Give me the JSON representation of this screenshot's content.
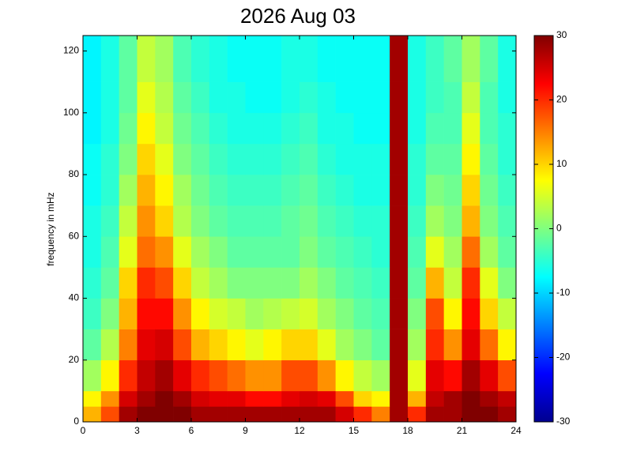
{
  "chart_data": {
    "type": "heatmap",
    "title": "2026 Aug 03",
    "y_label": "frequency in mHz",
    "x": [
      0,
      1,
      2,
      3,
      4,
      5,
      6,
      7,
      8,
      9,
      10,
      11,
      12,
      13,
      14,
      15,
      16,
      17,
      18,
      19,
      20,
      21,
      22,
      23,
      24
    ],
    "y": [
      0,
      5,
      10,
      20,
      30,
      40,
      50,
      60,
      70,
      80,
      90,
      100,
      110,
      125
    ],
    "values": [
      [
        12,
        18,
        28,
        30,
        30,
        30,
        28,
        28,
        28,
        28,
        28,
        28,
        28,
        28,
        25,
        20,
        15,
        28,
        20,
        28,
        28,
        30,
        30,
        28
      ],
      [
        8,
        14,
        25,
        28,
        30,
        28,
        25,
        24,
        24,
        22,
        22,
        24,
        25,
        24,
        18,
        10,
        8,
        28,
        12,
        26,
        28,
        30,
        28,
        26
      ],
      [
        2,
        8,
        20,
        26,
        28,
        24,
        20,
        18,
        16,
        14,
        14,
        18,
        18,
        14,
        8,
        4,
        2,
        28,
        6,
        24,
        22,
        28,
        24,
        18
      ],
      [
        -2,
        3,
        15,
        24,
        25,
        18,
        12,
        10,
        8,
        6,
        8,
        10,
        10,
        6,
        2,
        0,
        -2,
        28,
        2,
        20,
        14,
        24,
        16,
        8
      ],
      [
        -4,
        0,
        12,
        22,
        22,
        14,
        8,
        5,
        4,
        2,
        3,
        4,
        5,
        2,
        0,
        -2,
        -3,
        28,
        0,
        18,
        8,
        22,
        10,
        4
      ],
      [
        -5,
        -2,
        10,
        20,
        18,
        10,
        4,
        2,
        0,
        0,
        0,
        0,
        2,
        0,
        -2,
        -3,
        -4,
        28,
        -2,
        12,
        4,
        20,
        6,
        0
      ],
      [
        -6,
        -3,
        6,
        16,
        14,
        6,
        2,
        0,
        -2,
        -2,
        -2,
        -2,
        0,
        -2,
        -3,
        -4,
        -5,
        28,
        -3,
        6,
        2,
        16,
        2,
        -2
      ],
      [
        -6,
        -4,
        4,
        14,
        10,
        3,
        0,
        -2,
        -3,
        -3,
        -3,
        -2,
        -1,
        -3,
        -4,
        -5,
        -5,
        28,
        -4,
        2,
        0,
        12,
        0,
        -3
      ],
      [
        -7,
        -5,
        2,
        12,
        8,
        2,
        -1,
        -3,
        -4,
        -4,
        -4,
        -3,
        -2,
        -4,
        -5,
        -6,
        -6,
        28,
        -5,
        0,
        -1,
        10,
        -1,
        -4
      ],
      [
        -7,
        -5,
        0,
        10,
        6,
        0,
        -2,
        -4,
        -5,
        -5,
        -5,
        -4,
        -3,
        -5,
        -6,
        -6,
        -6,
        28,
        -5,
        -2,
        -2,
        8,
        -2,
        -5
      ],
      [
        -8,
        -6,
        -1,
        8,
        4,
        -1,
        -3,
        -5,
        -6,
        -6,
        -6,
        -5,
        -4,
        -6,
        -6,
        -7,
        -7,
        28,
        -6,
        -3,
        -3,
        6,
        -3,
        -5
      ],
      [
        -8,
        -6,
        -2,
        6,
        3,
        -2,
        -4,
        -6,
        -6,
        -7,
        -7,
        -6,
        -5,
        -6,
        -7,
        -7,
        -7,
        28,
        -6,
        -4,
        -3,
        4,
        -3,
        -6
      ],
      [
        -8,
        -6,
        -2,
        4,
        2,
        -3,
        -5,
        -6,
        -7,
        -7,
        -7,
        -6,
        -6,
        -7,
        -7,
        -7,
        -7,
        28,
        -6,
        -4,
        -2,
        2,
        -2,
        -6
      ]
    ],
    "xlim": [
      0,
      24
    ],
    "xticks": [
      0,
      3,
      6,
      9,
      12,
      15,
      18,
      21,
      24
    ],
    "ylim": [
      0,
      125
    ],
    "yticks": [
      0,
      20,
      40,
      60,
      80,
      100,
      120
    ],
    "colormap": "jet",
    "clim": [
      -30,
      30
    ],
    "cticks": [
      -30,
      -20,
      -10,
      0,
      10,
      20,
      30
    ]
  }
}
